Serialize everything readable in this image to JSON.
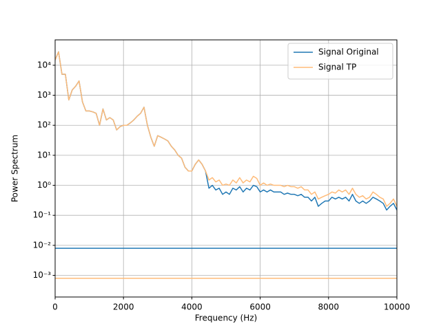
{
  "chart_data": {
    "type": "line",
    "x_label": "Frequency (Hz)",
    "y_label": "Power Spectrum",
    "log_y": true,
    "grid": true,
    "legend_position": "upper right",
    "xlim": [
      0,
      10000
    ],
    "xticks": [
      0,
      2000,
      4000,
      6000,
      8000,
      10000
    ],
    "ylim": [
      0.00019,
      70000
    ],
    "yticks": [
      {
        "value": 0.001,
        "label": "10⁻³"
      },
      {
        "value": 0.01,
        "label": "10⁻²"
      },
      {
        "value": 0.1,
        "label": "10⁻¹"
      },
      {
        "value": 1,
        "label": "10⁰"
      },
      {
        "value": 10,
        "label": "10¹"
      },
      {
        "value": 100,
        "label": "10²"
      },
      {
        "value": 1000,
        "label": "10³"
      },
      {
        "value": 10000,
        "label": "10⁴"
      }
    ],
    "x": [
      0,
      100,
      200,
      300,
      400,
      500,
      600,
      700,
      800,
      900,
      1000,
      1100,
      1200,
      1300,
      1400,
      1500,
      1600,
      1700,
      1800,
      1900,
      2000,
      2100,
      2200,
      2300,
      2400,
      2500,
      2600,
      2700,
      2800,
      2900,
      3000,
      3100,
      3200,
      3300,
      3400,
      3500,
      3600,
      3700,
      3800,
      3900,
      4000,
      4100,
      4200,
      4300,
      4400,
      4500,
      4600,
      4700,
      4800,
      4900,
      5000,
      5100,
      5200,
      5300,
      5400,
      5500,
      5600,
      5700,
      5800,
      5900,
      6000,
      6100,
      6200,
      6300,
      6400,
      6500,
      6600,
      6700,
      6800,
      6900,
      7000,
      7100,
      7200,
      7300,
      7400,
      7500,
      7600,
      7700,
      7800,
      7900,
      8000,
      8100,
      8200,
      8300,
      8400,
      8500,
      8600,
      8700,
      8800,
      8900,
      9000,
      9100,
      9200,
      9300,
      9400,
      9500,
      9600,
      9700,
      9800,
      9900,
      10000
    ],
    "series": [
      {
        "name": "Signal Original",
        "color": "#1f77b4",
        "opacity": 1,
        "values": [
          15000,
          28000,
          5000,
          5000,
          700,
          1500,
          2000,
          3000,
          600,
          300,
          300,
          280,
          250,
          100,
          350,
          150,
          180,
          150,
          70,
          90,
          100,
          100,
          120,
          150,
          200,
          250,
          400,
          100,
          40,
          20,
          45,
          40,
          35,
          30,
          20,
          15,
          10,
          8,
          4,
          3,
          3,
          5,
          7,
          5,
          3,
          0.8,
          1.0,
          0.7,
          0.8,
          0.5,
          0.6,
          0.5,
          0.8,
          0.7,
          0.9,
          0.6,
          0.8,
          0.7,
          1.0,
          0.9,
          0.6,
          0.7,
          0.6,
          0.7,
          0.6,
          0.6,
          0.6,
          0.5,
          0.55,
          0.5,
          0.5,
          0.45,
          0.5,
          0.4,
          0.4,
          0.3,
          0.4,
          0.2,
          0.25,
          0.3,
          0.3,
          0.4,
          0.35,
          0.4,
          0.35,
          0.4,
          0.3,
          0.5,
          0.3,
          0.25,
          0.3,
          0.25,
          0.3,
          0.4,
          0.35,
          0.3,
          0.25,
          0.15,
          0.2,
          0.25,
          0.15
        ]
      },
      {
        "name": "Signal TP",
        "color": "#ffbb78",
        "opacity": 1,
        "values": [
          15000,
          28000,
          5000,
          5000,
          700,
          1500,
          2000,
          3000,
          600,
          300,
          300,
          280,
          250,
          100,
          350,
          150,
          180,
          150,
          70,
          90,
          100,
          100,
          120,
          150,
          200,
          250,
          400,
          100,
          40,
          20,
          45,
          40,
          35,
          30,
          20,
          15,
          10,
          8,
          4,
          3,
          3,
          5,
          7,
          5,
          3,
          1.5,
          1.8,
          1.3,
          1.5,
          1.0,
          1.1,
          1.0,
          1.5,
          1.2,
          1.8,
          1.2,
          1.5,
          1.3,
          2.0,
          1.7,
          1.0,
          1.2,
          1.0,
          1.1,
          1.0,
          1.0,
          1.0,
          0.9,
          1.0,
          0.9,
          0.9,
          0.8,
          0.9,
          0.7,
          0.7,
          0.5,
          0.6,
          0.35,
          0.4,
          0.45,
          0.5,
          0.6,
          0.55,
          0.7,
          0.6,
          0.7,
          0.5,
          0.8,
          0.5,
          0.4,
          0.45,
          0.35,
          0.4,
          0.6,
          0.5,
          0.4,
          0.35,
          0.2,
          0.25,
          0.35,
          0.2
        ]
      }
    ],
    "hlines": [
      {
        "value": 0.008,
        "color": "#1f77b4"
      },
      {
        "value": 0.0008,
        "color": "#ffbb78"
      }
    ]
  }
}
